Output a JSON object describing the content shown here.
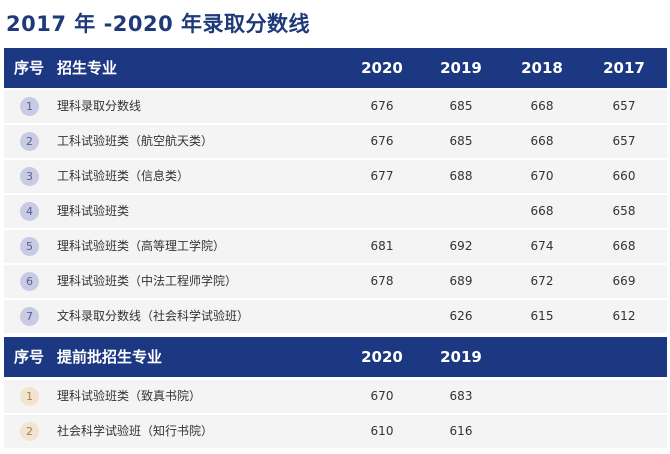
{
  "title": "2017 年 -2020 年录取分数线",
  "table1": {
    "headers": {
      "no": "序号",
      "name": "招生专业",
      "y1": "2020",
      "y2": "2019",
      "y3": "2018",
      "y4": "2017"
    },
    "rows": [
      {
        "no": "1",
        "name": "理科录取分数线",
        "y1": "676",
        "y2": "685",
        "y3": "668",
        "y4": "657"
      },
      {
        "no": "2",
        "name": "工科试验班类（航空航天类）",
        "y1": "676",
        "y2": "685",
        "y3": "668",
        "y4": "657"
      },
      {
        "no": "3",
        "name": "工科试验班类（信息类）",
        "y1": "677",
        "y2": "688",
        "y3": "670",
        "y4": "660"
      },
      {
        "no": "4",
        "name": "理科试验班类",
        "y1": "",
        "y2": "",
        "y3": "668",
        "y4": "658"
      },
      {
        "no": "5",
        "name": "理科试验班类（高等理工学院）",
        "y1": "681",
        "y2": "692",
        "y3": "674",
        "y4": "668"
      },
      {
        "no": "6",
        "name": "理科试验班类（中法工程师学院）",
        "y1": "678",
        "y2": "689",
        "y3": "672",
        "y4": "669"
      },
      {
        "no": "7",
        "name": "文科录取分数线（社会科学试验班）",
        "y1": "",
        "y2": "626",
        "y3": "615",
        "y4": "612"
      }
    ]
  },
  "table2": {
    "headers": {
      "no": "序号",
      "name": "提前批招生专业",
      "y1": "2020",
      "y2": "2019"
    },
    "rows": [
      {
        "no": "1",
        "name": "理科试验班类（致真书院）",
        "y1": "670",
        "y2": "683"
      },
      {
        "no": "2",
        "name": "社会科学试验班（知行书院）",
        "y1": "610",
        "y2": "616"
      }
    ]
  },
  "colors": {
    "header_bg": "#1c3883",
    "title": "#1f3a7a",
    "row_bg": "#f4f4f4",
    "badge_lavender": "#c9cbe4",
    "badge_beige": "#f3e4cf"
  }
}
